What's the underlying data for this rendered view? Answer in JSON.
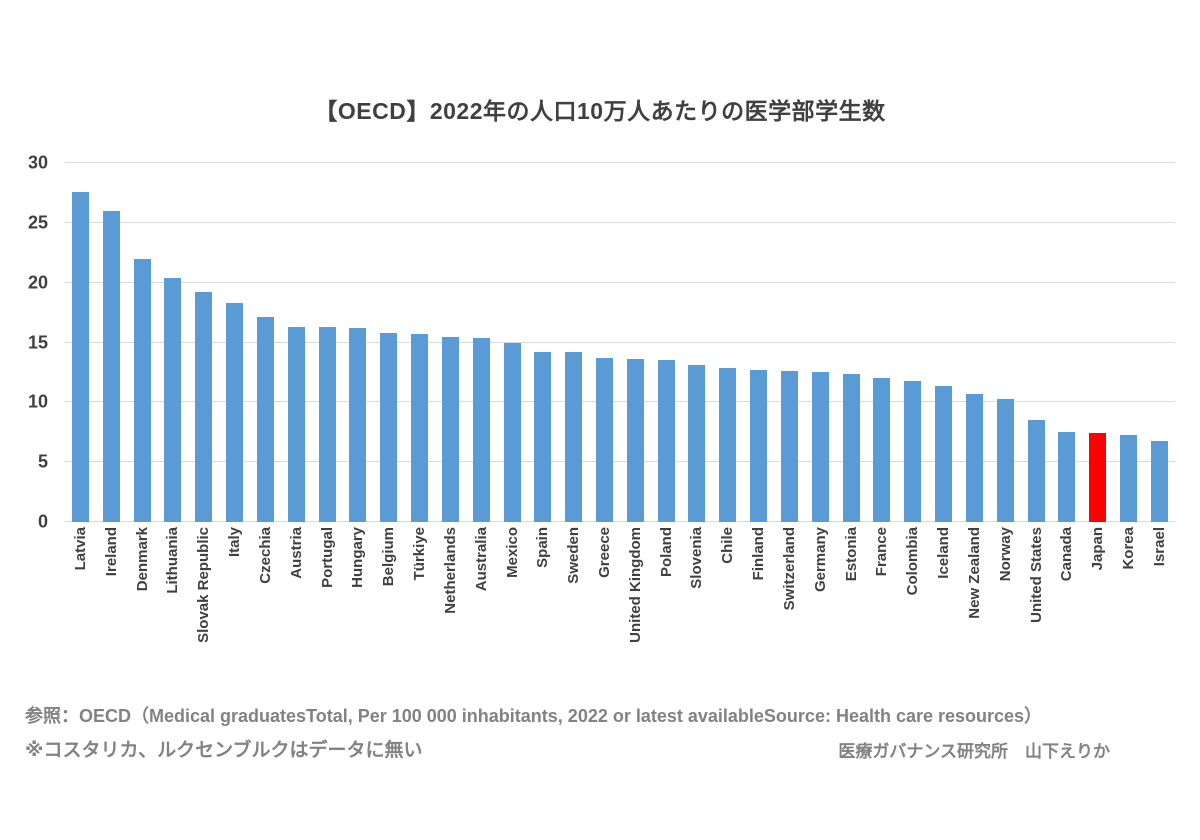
{
  "page": {
    "title": "【OECD】2022年の人口10万人あたりの医学部学生数",
    "footnote_source": "参照：OECD（Medical graduatesTotal, Per 100 000 inhabitants, 2022 or latest availableSource: Health care resources）",
    "footnote_note": "※コスタリカ、ルクセンブルクはデータに無い",
    "credit": "医療ガバナンス研究所　山下えりか"
  },
  "colors": {
    "bar": "#5b9bd5",
    "highlight": "#ff0000",
    "gridline": "#d9d9d9",
    "title_text": "#404040",
    "axis_text": "#404040",
    "footer_text": "#828282"
  },
  "chart_data": {
    "type": "bar",
    "title": "【OECD】2022年の人口10万人あたりの医学部学生数",
    "xlabel": "",
    "ylabel": "",
    "ylim": [
      0,
      30
    ],
    "yticks": [
      0,
      5,
      10,
      15,
      20,
      25,
      30
    ],
    "grid": true,
    "legend": "none",
    "highlight_category": "Japan",
    "categories": [
      "Latvia",
      "Ireland",
      "Denmark",
      "Lithuania",
      "Slovak Republic",
      "Italy",
      "Czechia",
      "Austria",
      "Portugal",
      "Hungary",
      "Belgium",
      "Türkiye",
      "Netherlands",
      "Australia",
      "Mexico",
      "Spain",
      "Sweden",
      "Greece",
      "United Kingdom",
      "Poland",
      "Slovenia",
      "Chile",
      "Finland",
      "Switzerland",
      "Germany",
      "Estonia",
      "France",
      "Colombia",
      "Iceland",
      "New Zealand",
      "Norway",
      "United States",
      "Canada",
      "Japan",
      "Korea",
      "Israel"
    ],
    "values": [
      27.6,
      26.0,
      22.0,
      20.4,
      19.2,
      18.3,
      17.1,
      16.3,
      16.3,
      16.2,
      15.8,
      15.7,
      15.5,
      15.4,
      15.0,
      14.2,
      14.2,
      13.7,
      13.6,
      13.5,
      13.1,
      12.9,
      12.7,
      12.6,
      12.5,
      12.4,
      12.0,
      11.8,
      11.4,
      10.7,
      10.3,
      8.5,
      7.5,
      7.4,
      7.3,
      6.8
    ]
  }
}
